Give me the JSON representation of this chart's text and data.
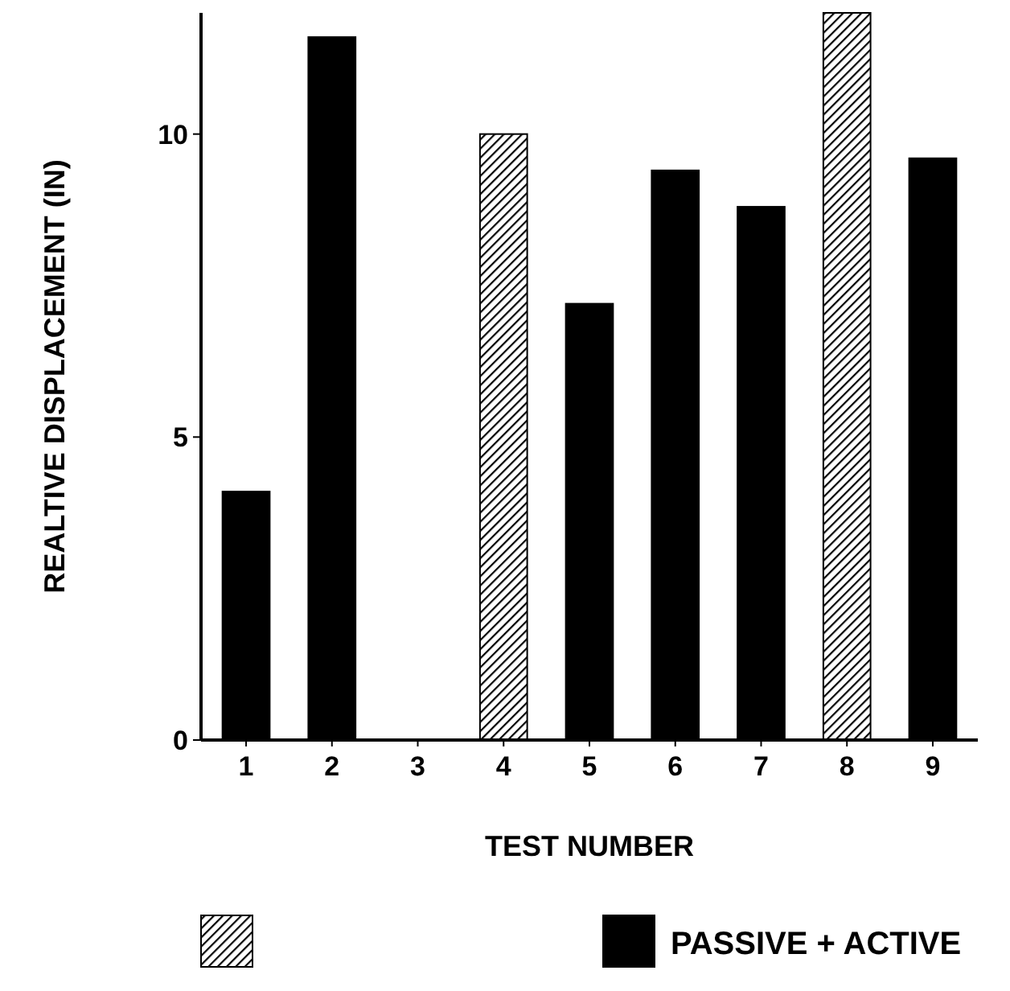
{
  "chart_data": {
    "type": "bar",
    "xlabel": "TEST NUMBER",
    "ylabel": "REALTIVE DISPLACEMENT (IN)",
    "categories": [
      "1",
      "2",
      "3",
      "4",
      "5",
      "6",
      "7",
      "8",
      "9"
    ],
    "series": [
      {
        "color": "#000000",
        "values": [
          null,
          null,
          null,
          10.0,
          null,
          null,
          null,
          12.0,
          null
        ]
      },
      {
        "name": "PASSIVE + ACTIVE",
        "color": "#000000",
        "values": [
          4.1,
          11.6,
          null,
          null,
          7.2,
          9.4,
          8.8,
          null,
          9.6
        ]
      }
    ],
    "ylim": [
      0,
      12
    ],
    "yticks": [
      0,
      5,
      10
    ],
    "legend": "bottom"
  }
}
